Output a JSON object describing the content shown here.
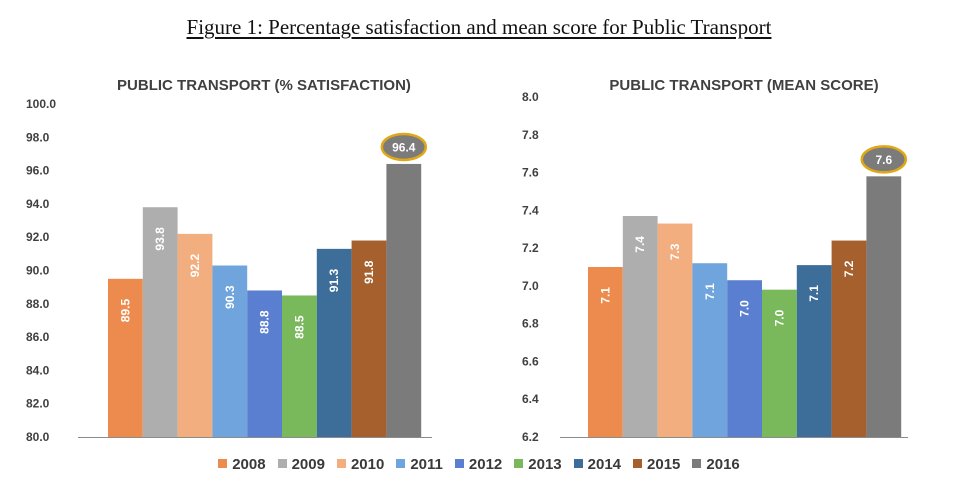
{
  "figure_title": "Figure 1: Percentage satisfaction and mean score for Public Transport",
  "colors": {
    "2008": "#ED8B4E",
    "2009": "#AEAEAE",
    "2010": "#F3AE80",
    "2011": "#6FA5DC",
    "2012": "#5B7FD0",
    "2013": "#79B95C",
    "2014": "#3D6E99",
    "2015": "#A6602D",
    "2016": "#7B7B7B",
    "highlight_border": "#E0A818"
  },
  "legend": [
    "2008",
    "2009",
    "2010",
    "2011",
    "2012",
    "2013",
    "2014",
    "2015",
    "2016"
  ],
  "chart_data": [
    {
      "type": "bar",
      "title": "PUBLIC TRANSPORT (% SATISFACTION)",
      "categories": [
        "2008",
        "2009",
        "2010",
        "2011",
        "2012",
        "2013",
        "2014",
        "2015",
        "2016"
      ],
      "values": [
        89.5,
        93.8,
        92.2,
        90.3,
        88.8,
        88.5,
        91.3,
        91.8,
        96.4
      ],
      "labels": [
        "89.5",
        "93.8",
        "92.2",
        "90.3",
        "88.8",
        "88.5",
        "91.3",
        "91.8",
        "96.4"
      ],
      "ylim": [
        80.0,
        100.0
      ],
      "yticks": [
        "80.0",
        "82.0",
        "84.0",
        "86.0",
        "88.0",
        "90.0",
        "92.0",
        "94.0",
        "96.0",
        "98.0",
        "100.0"
      ],
      "highlight_index": 8,
      "xlabel": "",
      "ylabel": "",
      "grid": false
    },
    {
      "type": "bar",
      "title": "PUBLIC TRANSPORT (MEAN SCORE)",
      "categories": [
        "2008",
        "2009",
        "2010",
        "2011",
        "2012",
        "2013",
        "2014",
        "2015",
        "2016"
      ],
      "values": [
        7.1,
        7.37,
        7.33,
        7.12,
        7.03,
        6.98,
        7.11,
        7.24,
        7.58
      ],
      "labels": [
        "7.1",
        "7.4",
        "7.3",
        "7.1",
        "7.0",
        "7.0",
        "7.1",
        "7.2",
        "7.6"
      ],
      "ylim": [
        6.2,
        8.0
      ],
      "yticks": [
        "6.2",
        "6.4",
        "6.6",
        "6.8",
        "7.0",
        "7.2",
        "7.4",
        "7.6",
        "7.8",
        "8.0"
      ],
      "highlight_index": 8,
      "xlabel": "",
      "ylabel": "",
      "grid": false
    }
  ]
}
